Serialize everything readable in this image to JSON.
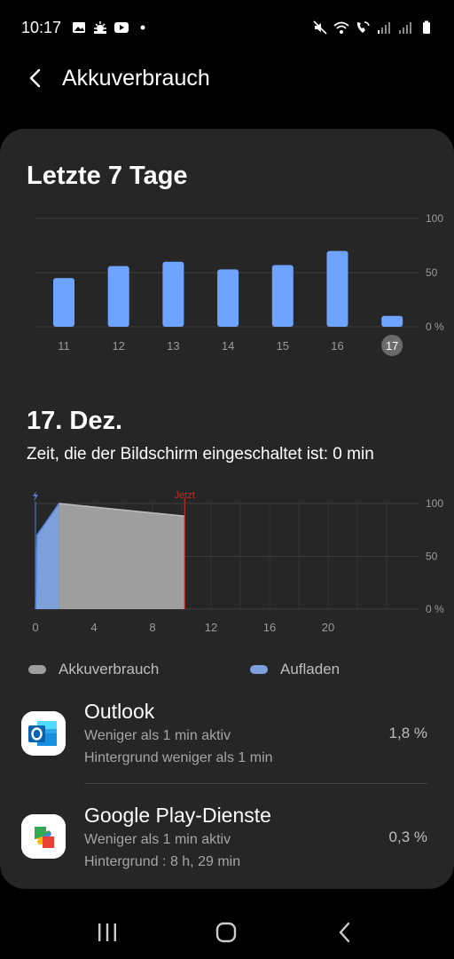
{
  "status_bar": {
    "time": "10:17",
    "left_icons": [
      "gallery-icon",
      "weather-icon",
      "youtube-icon",
      "dot-icon"
    ],
    "right_icons": [
      "mute-vibrate-icon",
      "wifi-icon",
      "wifi-calling-icon",
      "signal-icon",
      "signal-icon-2",
      "battery-icon"
    ]
  },
  "header": {
    "title": "Akkuverbrauch"
  },
  "weekly": {
    "title": "Letzte 7 Tage",
    "y_ticks": [
      "100",
      "50",
      "0 %"
    ],
    "selected_day": "17"
  },
  "daily": {
    "title": "17. Dez.",
    "screen_time": "Zeit, die der Bildschirm eingeschaltet ist: 0 min",
    "now_label": "Jetzt",
    "y_ticks": [
      "100",
      "50",
      "0 %"
    ],
    "x_ticks": [
      "0",
      "4",
      "8",
      "12",
      "16",
      "20"
    ]
  },
  "legend": {
    "usage_label": "Akkuverbrauch",
    "charging_label": "Aufladen"
  },
  "colors": {
    "bar": "#6ea3ff",
    "usage": "#9e9e9e",
    "charging": "#7d9fdc",
    "now_line": "#c62828"
  },
  "apps": [
    {
      "name": "Outlook",
      "active": "Weniger als 1 min aktiv",
      "background": "Hintergrund weniger als 1 min",
      "percent": "1,8 %",
      "icon": "outlook-icon"
    },
    {
      "name": "Google Play-Dienste",
      "active": "Weniger als 1 min aktiv",
      "background": "Hintergrund : 8 h, 29 min",
      "percent": "0,3 %",
      "icon": "google-play-services-icon"
    }
  ],
  "chart_data": [
    {
      "type": "bar",
      "title": "Letzte 7 Tage",
      "categories": [
        "11",
        "12",
        "13",
        "14",
        "15",
        "16",
        "17"
      ],
      "values": [
        45,
        56,
        60,
        53,
        57,
        70,
        10
      ],
      "ylim": [
        0,
        100
      ],
      "grid": true
    },
    {
      "type": "area",
      "title": "17. Dez.",
      "xlim": [
        0,
        24
      ],
      "ylim": [
        0,
        100
      ],
      "grid": true,
      "series": [
        {
          "name": "Aufladen",
          "x": [
            0,
            0.1,
            1.6
          ],
          "y": [
            0,
            70,
            100
          ]
        },
        {
          "name": "Akkuverbrauch",
          "x": [
            1.6,
            10.2
          ],
          "y": [
            100,
            88
          ]
        }
      ],
      "now_x": 10.2
    }
  ]
}
